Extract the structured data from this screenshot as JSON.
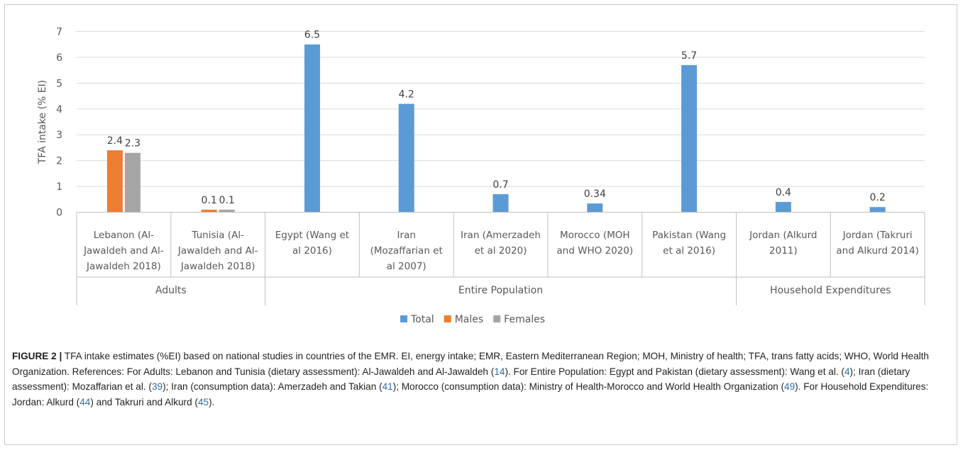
{
  "chart_data": {
    "type": "bar",
    "ylabel": "TFA intake (% EI)",
    "ylim": [
      0,
      7
    ],
    "yticks": [
      "0",
      "1",
      "2",
      "3",
      "4",
      "5",
      "6",
      "7"
    ],
    "grid": true,
    "legend_position": "bottom",
    "categories": [
      {
        "lines": [
          "Lebanon (Al-",
          "Jawaldeh and Al-",
          "Jawaldeh 2018)"
        ],
        "group": "Adults"
      },
      {
        "lines": [
          "Tunisia  (Al-",
          "Jawaldeh and Al-",
          "Jawaldeh 2018)"
        ],
        "group": "Adults"
      },
      {
        "lines": [
          "Egypt (Wang et",
          "al 2016)"
        ],
        "group": "Entire Population"
      },
      {
        "lines": [
          "Iran",
          "(Mozaffarian et",
          "al 2007)"
        ],
        "group": "Entire Population"
      },
      {
        "lines": [
          "Iran (Amerzadeh",
          "et al 2020)"
        ],
        "group": "Entire Population"
      },
      {
        "lines": [
          "Morocco (MOH",
          "and WHO 2020)"
        ],
        "group": "Entire Population"
      },
      {
        "lines": [
          "Pakistan (Wang",
          "et al 2016)"
        ],
        "group": "Entire Population"
      },
      {
        "lines": [
          "Jordan (Alkurd",
          "2011)"
        ],
        "group": "Household Expenditures"
      },
      {
        "lines": [
          "Jordan (Takruri",
          "and Alkurd 2014)"
        ],
        "group": "Household Expenditures"
      }
    ],
    "groups": [
      "Adults",
      "Entire Population",
      "Household Expenditures"
    ],
    "series": [
      {
        "name": "Total",
        "color": "#5b9bd5",
        "values": [
          null,
          null,
          6.5,
          4.2,
          0.7,
          0.34,
          5.7,
          0.4,
          0.2
        ],
        "labels": [
          "",
          "",
          "6.5",
          "4.2",
          "0.7",
          "0.34",
          "5.7",
          "0.4",
          "0.2"
        ]
      },
      {
        "name": "Males",
        "color": "#ed7d31",
        "values": [
          2.4,
          0.1,
          null,
          null,
          null,
          null,
          null,
          null,
          null
        ],
        "labels": [
          "2.4",
          "0.1",
          "",
          "",
          "",
          "",
          "",
          "",
          ""
        ]
      },
      {
        "name": "Females",
        "color": "#a5a5a5",
        "values": [
          2.3,
          0.1,
          null,
          null,
          null,
          null,
          null,
          null,
          null
        ],
        "labels": [
          "2.3",
          "0.1",
          "",
          "",
          "",
          "",
          "",
          "",
          ""
        ]
      }
    ]
  },
  "caption": {
    "label": "FIGURE 2 |",
    "p1": " TFA intake estimates (%EI) based on national studies in countries of the EMR. EI, energy intake; EMR, Eastern Mediterranean Region; MOH, Ministry of health; TFA, trans fatty acids; WHO, World Health Organization. References: For Adults: Lebanon and Tunisia (dietary assessment): Al-Jawaldeh and Al-Jawaldeh (",
    "r1": "14",
    "p2": "). For Entire Population: Egypt and Pakistan (dietary assessment): Wang et al. (",
    "r2": "4",
    "p3": "); Iran (dietary assessment): Mozaffarian et al. (",
    "r3": "39",
    "p4": "); Iran (consumption data): Amerzadeh and Takian (",
    "r4": "41",
    "p5": "); Morocco (consumption data): Ministry of Health-Morocco and World Health Organization (",
    "r5": "49",
    "p6": "). For Household Expenditures: Jordan: Alkurd (",
    "r6": "44",
    "p7": ") and Takruri and Alkurd (",
    "r7": "45",
    "p8": ")."
  }
}
